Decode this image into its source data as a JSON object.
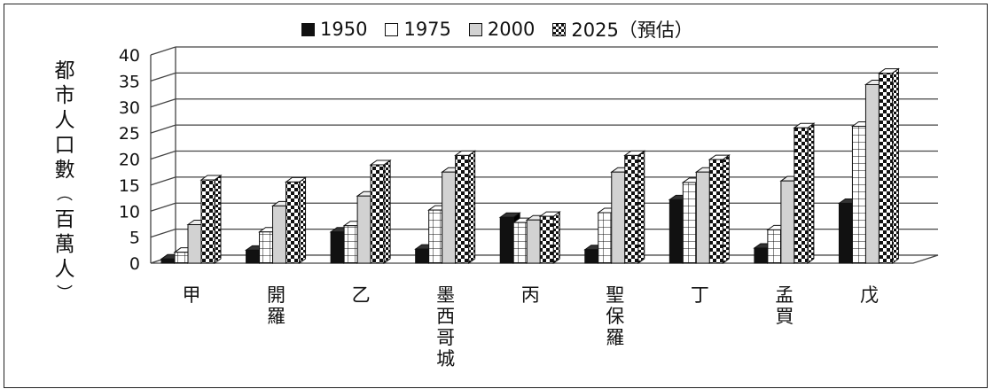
{
  "chart_data": {
    "type": "bar",
    "ylabel": "都市人口數（百萬人）",
    "ylim": [
      0,
      40
    ],
    "yticks": [
      0,
      5,
      10,
      15,
      20,
      25,
      30,
      35,
      40
    ],
    "categories": [
      "甲",
      "開羅",
      "乙",
      "墨西哥城",
      "丙",
      "聖保羅",
      "丁",
      "孟買",
      "戊"
    ],
    "series": [
      {
        "name": "1950",
        "pattern": "solid-black",
        "values": [
          0.8,
          2.5,
          6.0,
          2.7,
          8.8,
          2.6,
          12.2,
          2.9,
          11.5
        ]
      },
      {
        "name": "1975",
        "pattern": "grid",
        "values": [
          2.1,
          6.0,
          7.2,
          10.2,
          7.8,
          9.7,
          15.5,
          6.4,
          26.3
        ]
      },
      {
        "name": "2000",
        "pattern": "light-gray",
        "values": [
          7.4,
          11.0,
          12.9,
          17.5,
          8.3,
          17.5,
          17.5,
          15.8,
          34.3
        ]
      },
      {
        "name": "2025（預估）",
        "pattern": "checker",
        "values": [
          16.0,
          15.6,
          18.9,
          20.7,
          9.0,
          20.7,
          19.9,
          26.0,
          36.5
        ]
      }
    ],
    "grid": true,
    "legend_position": "top"
  },
  "legend": {
    "items": [
      {
        "label": "1950",
        "icon": "solid-black-swatch-icon"
      },
      {
        "label": "1975",
        "icon": "grid-swatch-icon"
      },
      {
        "label": "2000",
        "icon": "gray-swatch-icon"
      },
      {
        "label": "2025（預估）",
        "icon": "checker-swatch-icon"
      }
    ]
  },
  "colors": {
    "c1950": "#111111",
    "c1975": "#ffffff",
    "c2000": "#d2d2d2",
    "c2025_a": "#111111",
    "c2025_b": "#ffffff"
  }
}
